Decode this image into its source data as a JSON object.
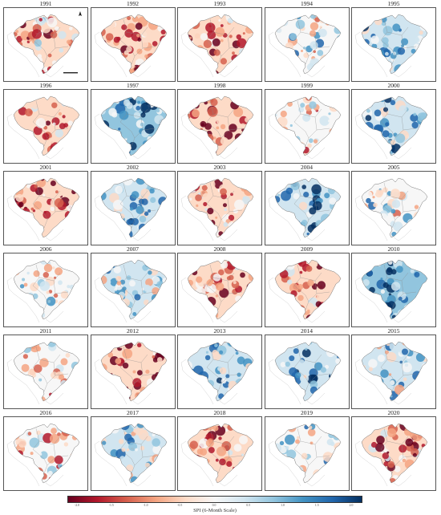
{
  "panels": [
    {
      "year": "1991",
      "tone": -0.3
    },
    {
      "year": "1992",
      "tone": -0.5
    },
    {
      "year": "1993",
      "tone": -0.4
    },
    {
      "year": "1994",
      "tone": 0.1
    },
    {
      "year": "1995",
      "tone": 0.3
    },
    {
      "year": "1996",
      "tone": -0.3
    },
    {
      "year": "1997",
      "tone": 0.6
    },
    {
      "year": "1998",
      "tone": -0.6
    },
    {
      "year": "1999",
      "tone": -0.2
    },
    {
      "year": "2000",
      "tone": 0.3
    },
    {
      "year": "2001",
      "tone": -0.6
    },
    {
      "year": "2002",
      "tone": 0.3
    },
    {
      "year": "2003",
      "tone": -0.4
    },
    {
      "year": "2004",
      "tone": 0.4
    },
    {
      "year": "2005",
      "tone": 0.1
    },
    {
      "year": "2006",
      "tone": -0.1
    },
    {
      "year": "2007",
      "tone": 0.2
    },
    {
      "year": "2008",
      "tone": -0.4
    },
    {
      "year": "2009",
      "tone": -0.4
    },
    {
      "year": "2010",
      "tone": 0.6
    },
    {
      "year": "2011",
      "tone": -0.1
    },
    {
      "year": "2012",
      "tone": -0.6
    },
    {
      "year": "2013",
      "tone": 0.3
    },
    {
      "year": "2014",
      "tone": 0.4
    },
    {
      "year": "2015",
      "tone": 0.2
    },
    {
      "year": "2016",
      "tone": -0.1
    },
    {
      "year": "2017",
      "tone": 0.2
    },
    {
      "year": "2018",
      "tone": -0.3
    },
    {
      "year": "2019",
      "tone": 0.1
    },
    {
      "year": "2020",
      "tone": -0.4
    }
  ],
  "colorbar": {
    "title": "SPI (6-Month Scale)",
    "ticks": [
      "-2.0",
      "-1.5",
      "-1.0",
      "-0.5",
      "0.0",
      "0.5",
      "1.0",
      "1.5",
      "2.0"
    ],
    "colors": [
      "#67001f",
      "#b2182b",
      "#d6604d",
      "#f4a582",
      "#fddbc7",
      "#f7f7f7",
      "#d1e5f0",
      "#92c5de",
      "#4393c3",
      "#2166ac",
      "#053061"
    ]
  }
}
